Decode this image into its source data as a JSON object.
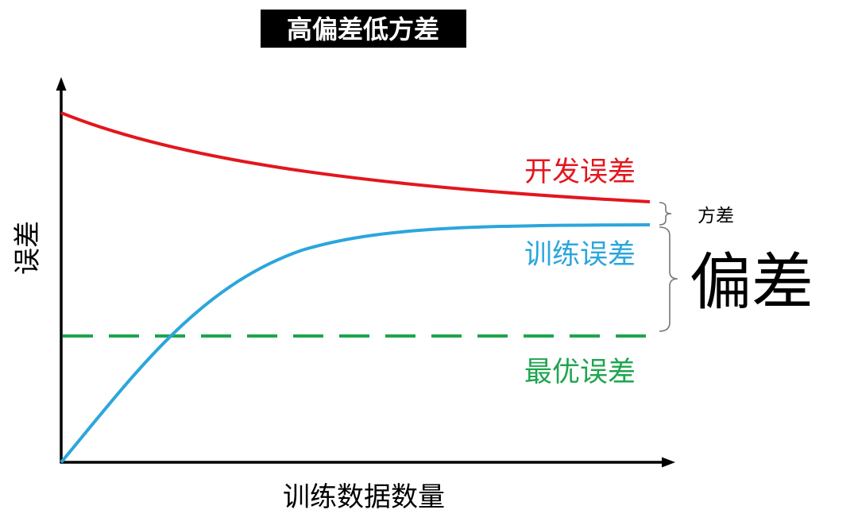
{
  "title": "高偏差低方差",
  "axes": {
    "x_label": "训练数据数量",
    "y_label": "误差"
  },
  "curves": {
    "dev_error": {
      "label": "开发误差",
      "color": "#e3161d"
    },
    "train_error": {
      "label": "训练误差",
      "color": "#2ba6dc"
    },
    "optimal_error": {
      "label": "最优误差",
      "color": "#1fa54e",
      "style": "dashed"
    }
  },
  "brackets": {
    "variance": {
      "label": "方差"
    },
    "bias": {
      "label": "偏差"
    }
  },
  "colors": {
    "background": "#ffffff",
    "title_box": "#000000",
    "title_text": "#ffffff",
    "axis": "#000000",
    "bracket": "#777777"
  }
}
